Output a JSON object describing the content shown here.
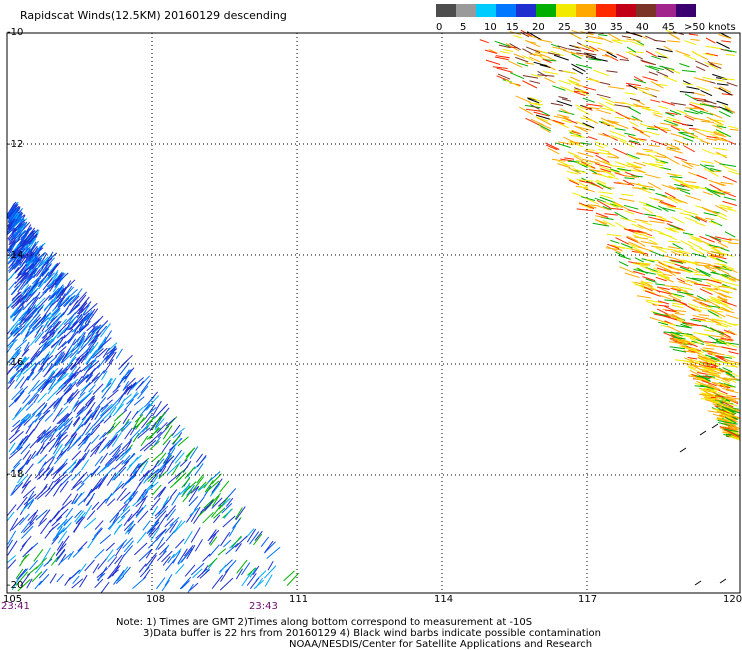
{
  "title": "Rapidscat Winds(12.5KM) 20160129 descending",
  "legend": {
    "labels": [
      "0",
      "5",
      "10",
      "15",
      "20",
      "25",
      "30",
      "35",
      "40",
      "45",
      ">50 knots"
    ],
    "colors": [
      "#4d4d4d",
      "#9a9a9a",
      "#00ccff",
      "#0077ff",
      "#1f2fcf",
      "#00b000",
      "#f2ea00",
      "#ffa800",
      "#ff2a00",
      "#c10018",
      "#7a3326",
      "#a0248c",
      "#3b0070"
    ]
  },
  "axes": {
    "lat_labels": [
      "-10",
      "-12",
      "-14",
      "-16",
      "-18",
      "-20"
    ],
    "lon_labels": [
      "105",
      "108",
      "111",
      "114",
      "117",
      "120"
    ]
  },
  "times": {
    "start": "23:41",
    "end": "23:43"
  },
  "notes": {
    "line1": "Note: 1) Times are GMT 2)Times along bottom correspond to measurement at -10S",
    "line2": "3)Data buffer is 22 hrs from 20160129 4) Black wind barbs indicate possible contamination",
    "line3": "NOAA/NESDIS/Center for Satellite Applications and Research"
  }
}
